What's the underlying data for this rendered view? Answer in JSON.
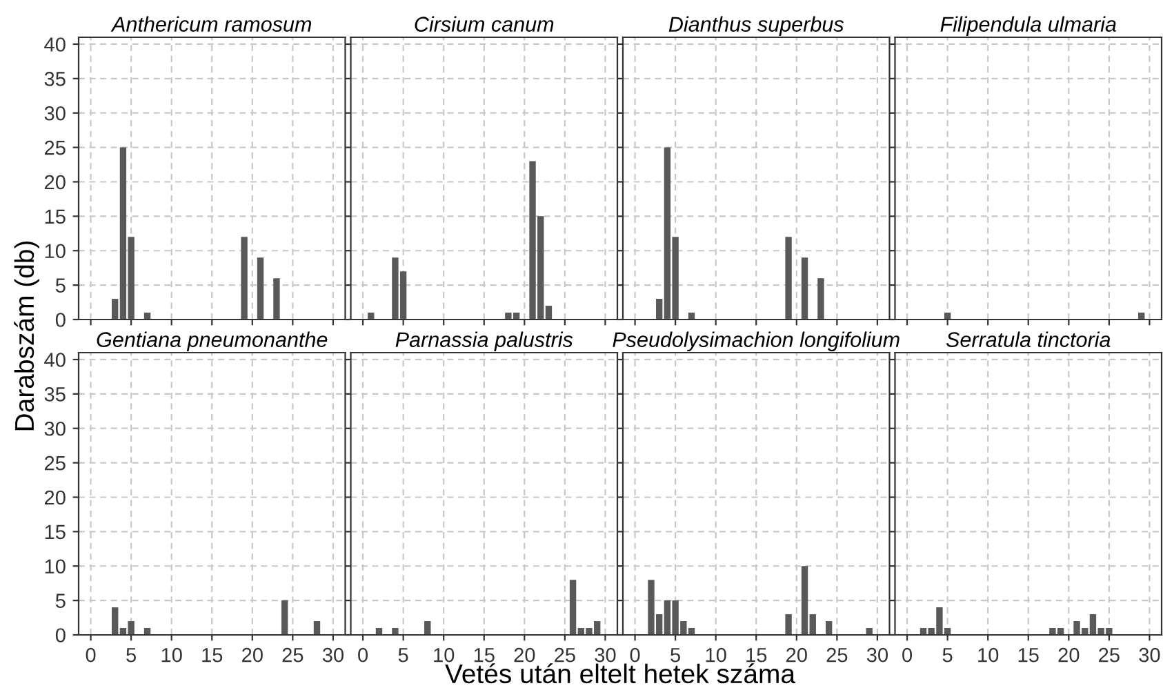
{
  "chart_data": [
    {
      "type": "bar",
      "title": "Anthericum ramosum",
      "ylabel": "Darabszám (db)",
      "x": [
        3,
        4,
        5,
        7,
        19,
        21,
        23
      ],
      "values": [
        3,
        25,
        12,
        1,
        12,
        9,
        6
      ],
      "color": "#595959",
      "xlim": [
        -1.5,
        31.5
      ],
      "ylim": [
        0,
        41
      ],
      "xticks": [
        0,
        5,
        10,
        15,
        20,
        25,
        30
      ],
      "yticks": [
        0,
        5,
        10,
        15,
        20,
        25,
        30,
        35,
        40
      ],
      "grid": true,
      "tick_labels": "y"
    },
    {
      "type": "bar",
      "title": "Cirsium canum",
      "x": [
        1,
        4,
        5,
        18,
        19,
        21,
        22,
        23
      ],
      "values": [
        1,
        9,
        7,
        1,
        1,
        23,
        15,
        2
      ],
      "color": "#595959",
      "xlim": [
        -1.5,
        31.5
      ],
      "ylim": [
        0,
        41
      ],
      "xticks": [
        0,
        5,
        10,
        15,
        20,
        25,
        30
      ],
      "yticks": [
        0,
        5,
        10,
        15,
        20,
        25,
        30,
        35,
        40
      ],
      "grid": true,
      "tick_labels": false
    },
    {
      "type": "bar",
      "title": "Dianthus superbus",
      "x": [
        3,
        4,
        5,
        7,
        19,
        21,
        23
      ],
      "values": [
        3,
        25,
        12,
        1,
        12,
        9,
        6
      ],
      "color": "#595959",
      "xlim": [
        -1.5,
        31.5
      ],
      "ylim": [
        0,
        41
      ],
      "xticks": [
        0,
        5,
        10,
        15,
        20,
        25,
        30
      ],
      "yticks": [
        0,
        5,
        10,
        15,
        20,
        25,
        30,
        35,
        40
      ],
      "grid": true,
      "tick_labels": false
    },
    {
      "type": "bar",
      "title": "Filipendula ulmaria",
      "x": [
        5,
        29
      ],
      "values": [
        1,
        1
      ],
      "color": "#595959",
      "xlim": [
        -1.5,
        31.5
      ],
      "ylim": [
        0,
        41
      ],
      "xticks": [
        0,
        5,
        10,
        15,
        20,
        25,
        30
      ],
      "yticks": [
        0,
        5,
        10,
        15,
        20,
        25,
        30,
        35,
        40
      ],
      "grid": true,
      "tick_labels": false
    },
    {
      "type": "bar",
      "title": "Gentiana pneumonanthe",
      "xlabel": "Vetés után eltelt hetek száma",
      "x": [
        3,
        4,
        5,
        7,
        24,
        28
      ],
      "values": [
        4,
        1,
        2,
        1,
        5,
        2
      ],
      "color": "#595959",
      "xlim": [
        -1.5,
        31.5
      ],
      "ylim": [
        0,
        41
      ],
      "xticks": [
        0,
        5,
        10,
        15,
        20,
        25,
        30
      ],
      "yticks": [
        0,
        5,
        10,
        15,
        20,
        25,
        30,
        35,
        40
      ],
      "grid": true
    },
    {
      "type": "bar",
      "title": "Parnassia palustris",
      "x": [
        2,
        4,
        8,
        26,
        27,
        28,
        29
      ],
      "values": [
        1,
        1,
        2,
        8,
        1,
        1,
        2
      ],
      "color": "#595959",
      "xlim": [
        -1.5,
        31.5
      ],
      "ylim": [
        0,
        41
      ],
      "xticks": [
        0,
        5,
        10,
        15,
        20,
        25,
        30
      ],
      "yticks": [
        0,
        5,
        10,
        15,
        20,
        25,
        30,
        35,
        40
      ],
      "grid": true,
      "tick_labels": "x"
    },
    {
      "type": "bar",
      "title": "Pseudolysimachion longifolium",
      "x": [
        2,
        3,
        4,
        5,
        6,
        7,
        19,
        21,
        22,
        24,
        29
      ],
      "values": [
        8,
        3,
        5,
        5,
        2,
        1,
        3,
        10,
        3,
        2,
        1
      ],
      "color": "#595959",
      "xlim": [
        -1.5,
        31.5
      ],
      "ylim": [
        0,
        41
      ],
      "xticks": [
        0,
        5,
        10,
        15,
        20,
        25,
        30
      ],
      "yticks": [
        0,
        5,
        10,
        15,
        20,
        25,
        30,
        35,
        40
      ],
      "grid": true,
      "tick_labels": "x"
    },
    {
      "type": "bar",
      "title": "Serratula tinctoria",
      "x": [
        2,
        3,
        4,
        5,
        18,
        19,
        21,
        22,
        23,
        24,
        25
      ],
      "values": [
        1,
        1,
        4,
        1,
        1,
        1,
        2,
        1,
        3,
        1,
        1
      ],
      "color": "#595959",
      "xlim": [
        -1.5,
        31.5
      ],
      "ylim": [
        0,
        41
      ],
      "xticks": [
        0,
        5,
        10,
        15,
        20,
        25,
        30
      ],
      "yticks": [
        0,
        5,
        10,
        15,
        20,
        25,
        30,
        35,
        40
      ],
      "grid": true,
      "tick_labels": "x"
    }
  ]
}
